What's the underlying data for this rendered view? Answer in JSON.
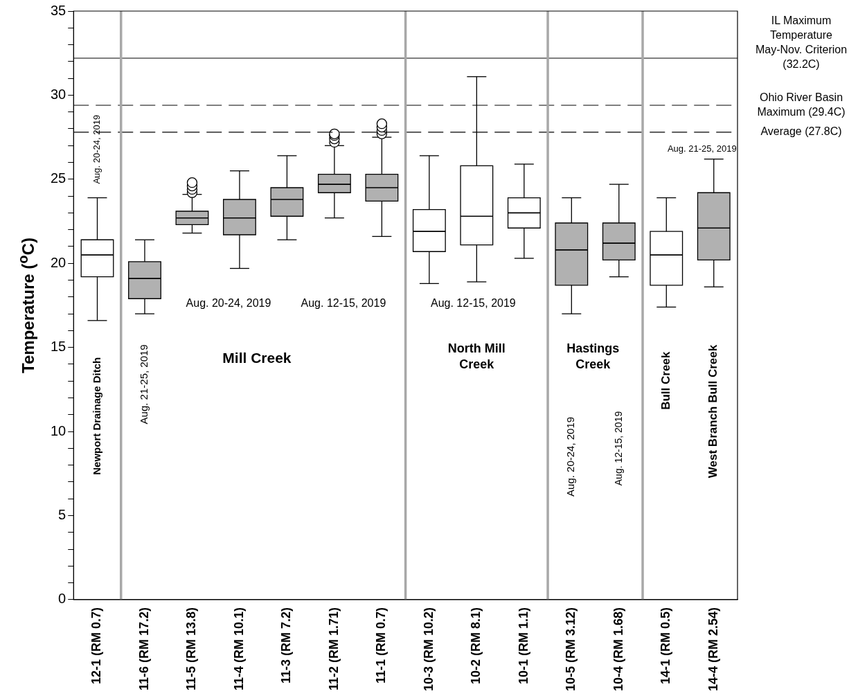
{
  "chart_data": {
    "type": "box",
    "ylabel": "Temperature ($^{o}$C)",
    "categories": [
      "12-1 (RM 0.7)",
      "11-6 (RM 17.2)",
      "11-5 (RM 13.8)",
      "11-4 (RM 10.1)",
      "11-3 (RM 7.2)",
      "11-2 (RM 1.71)",
      "11-1 (RM 0.7)",
      "10-3 (RM 10.2)",
      "10-2 (RM 8.1)",
      "10-1 (RM 1.1)",
      "10-5 (RM 3.12)",
      "10-4 (RM 1.68)",
      "14-1 (RM 0.5)",
      "14-4 (RM 2.54)"
    ],
    "colors": [
      "#ffffff",
      "#b1b1b1",
      "#b1b1b1",
      "#b1b1b1",
      "#b1b1b1",
      "#b1b1b1",
      "#b1b1b1",
      "#ffffff",
      "#ffffff",
      "#ffffff",
      "#b1b1b1",
      "#b1b1b1",
      "#ffffff",
      "#b1b1b1"
    ],
    "boxes": [
      {
        "low": 16.6,
        "q1": 19.2,
        "median": 20.5,
        "q3": 21.4,
        "high": 23.9
      },
      {
        "low": 17.0,
        "q1": 17.9,
        "median": 19.1,
        "q3": 20.1,
        "high": 21.4
      },
      {
        "low": 21.8,
        "q1": 22.3,
        "median": 22.7,
        "q3": 23.1,
        "high": 24.1,
        "outliers": [
          24.2,
          24.4,
          24.6,
          24.8
        ]
      },
      {
        "low": 19.7,
        "q1": 21.7,
        "median": 22.7,
        "q3": 23.8,
        "high": 25.5
      },
      {
        "low": 21.4,
        "q1": 22.8,
        "median": 23.8,
        "q3": 24.5,
        "high": 26.4
      },
      {
        "low": 22.7,
        "q1": 24.2,
        "median": 24.7,
        "q3": 25.3,
        "high": 27.0,
        "outliers": [
          27.2,
          27.4,
          27.6,
          27.7
        ]
      },
      {
        "low": 21.6,
        "q1": 23.7,
        "median": 24.5,
        "q3": 25.3,
        "high": 27.5,
        "outliers": [
          27.7,
          27.9,
          28.1,
          28.3
        ]
      },
      {
        "low": 18.8,
        "q1": 20.7,
        "median": 21.9,
        "q3": 23.2,
        "high": 26.4
      },
      {
        "low": 18.9,
        "q1": 21.1,
        "median": 22.8,
        "q3": 25.8,
        "high": 31.1
      },
      {
        "low": 20.3,
        "q1": 22.1,
        "median": 23.0,
        "q3": 23.9,
        "high": 25.9
      },
      {
        "low": 17.0,
        "q1": 18.7,
        "median": 20.8,
        "q3": 22.4,
        "high": 23.9
      },
      {
        "low": 19.2,
        "q1": 20.2,
        "median": 21.2,
        "q3": 22.4,
        "high": 24.7
      },
      {
        "low": 17.4,
        "q1": 18.7,
        "median": 20.5,
        "q3": 21.9,
        "high": 23.9
      },
      {
        "low": 18.6,
        "q1": 20.2,
        "median": 22.1,
        "q3": 24.2,
        "high": 26.2
      }
    ],
    "ylim": [
      0,
      35
    ],
    "yticks": [
      0,
      {
        "value": 1,
        "label": null
      },
      {
        "value": 2,
        "label": null
      },
      {
        "value": 3,
        "label": null
      },
      {
        "value": 4,
        "label": null
      },
      5,
      {
        "value": 6,
        "label": null
      },
      {
        "value": 7,
        "label": null
      },
      {
        "value": 8,
        "label": null
      },
      {
        "value": 9,
        "label": null
      },
      10,
      {
        "value": 11,
        "label": null
      },
      {
        "value": 12,
        "label": null
      },
      {
        "value": 13,
        "label": null
      },
      {
        "value": 14,
        "label": null
      },
      15,
      {
        "value": 16,
        "label": null
      },
      {
        "value": 17,
        "label": null
      },
      {
        "value": 18,
        "label": null
      },
      {
        "value": 19,
        "label": null
      },
      20,
      {
        "value": 21,
        "label": null
      },
      {
        "value": 22,
        "label": null
      },
      {
        "value": 23,
        "label": null
      },
      {
        "value": 24,
        "label": null
      },
      25,
      {
        "value": 26,
        "label": null
      },
      {
        "value": 27,
        "label": null
      },
      {
        "value": 28,
        "label": null
      },
      {
        "value": 29,
        "label": null
      },
      30,
      {
        "value": 31,
        "label": null
      },
      {
        "value": 32,
        "label": null
      },
      {
        "value": 33,
        "label": null
      },
      {
        "value": 34,
        "label": null
      },
      35
    ],
    "ref_lines": [
      {
        "axis": "y",
        "value": 32.2,
        "label": "IL Maximum Temperature May-Nov. Criterion (32.2C)",
        "line_style": "solid"
      },
      {
        "axis": "y",
        "value": 29.4,
        "label": "Ohio River Basin Maximum (29.4C)",
        "line_style": "dashed"
      },
      {
        "axis": "y",
        "value": 27.8,
        "label": "Average (27.8C)",
        "line_style": "dashed"
      }
    ],
    "annotations": [
      "Aug. 20-24, 2019",
      "Newport Drainage Ditch",
      "Aug. 21-25, 2019",
      "Aug. 20-24, 2019",
      "Aug. 12-15, 2019",
      "Mill Creek",
      "North Mill Creek",
      "Aug. 12-15, 2019",
      "Hastings Creek",
      "Aug. 20-24, 2019",
      "Aug. 12-15, 2019",
      "Bull Creek",
      "West Branch Bull Creek",
      "Aug. 21-25, 2019"
    ]
  }
}
